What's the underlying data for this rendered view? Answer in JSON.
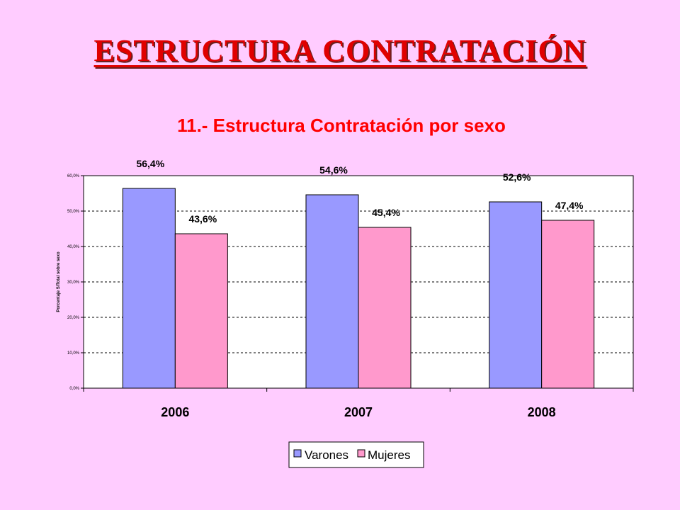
{
  "slide": {
    "title": "ESTRUCTURA CONTRATACIÓN"
  },
  "colors": {
    "background": "#ffccff",
    "title": "#e00000",
    "chart_title": "#ff0000",
    "varones": "#9999ff",
    "mujeres": "#ff99cc"
  },
  "chart_data": {
    "type": "bar",
    "title": "11.- Estructura Contratación por sexo",
    "ylabel": "Porcentaje S/Total sobre sexo",
    "xlabel": "",
    "categories": [
      "2006",
      "2007",
      "2008"
    ],
    "series": [
      {
        "name": "Varones",
        "color": "#9999ff",
        "values": [
          56.4,
          54.6,
          52.6
        ],
        "labels": [
          "56,4%",
          "54,6%",
          "52,6%"
        ]
      },
      {
        "name": "Mujeres",
        "color": "#ff99cc",
        "values": [
          43.6,
          45.4,
          47.4
        ],
        "labels": [
          "43,6%",
          "45,4%",
          "47,4%"
        ]
      }
    ],
    "ylim": [
      0,
      60
    ],
    "yticks": [
      0,
      10,
      20,
      30,
      40,
      50,
      60
    ],
    "ytick_labels": [
      "0,0%",
      "10,0%",
      "20,0%",
      "30,0%",
      "40,0%",
      "50,0%",
      "60,0%"
    ],
    "grid": true,
    "legend": "bottom"
  }
}
